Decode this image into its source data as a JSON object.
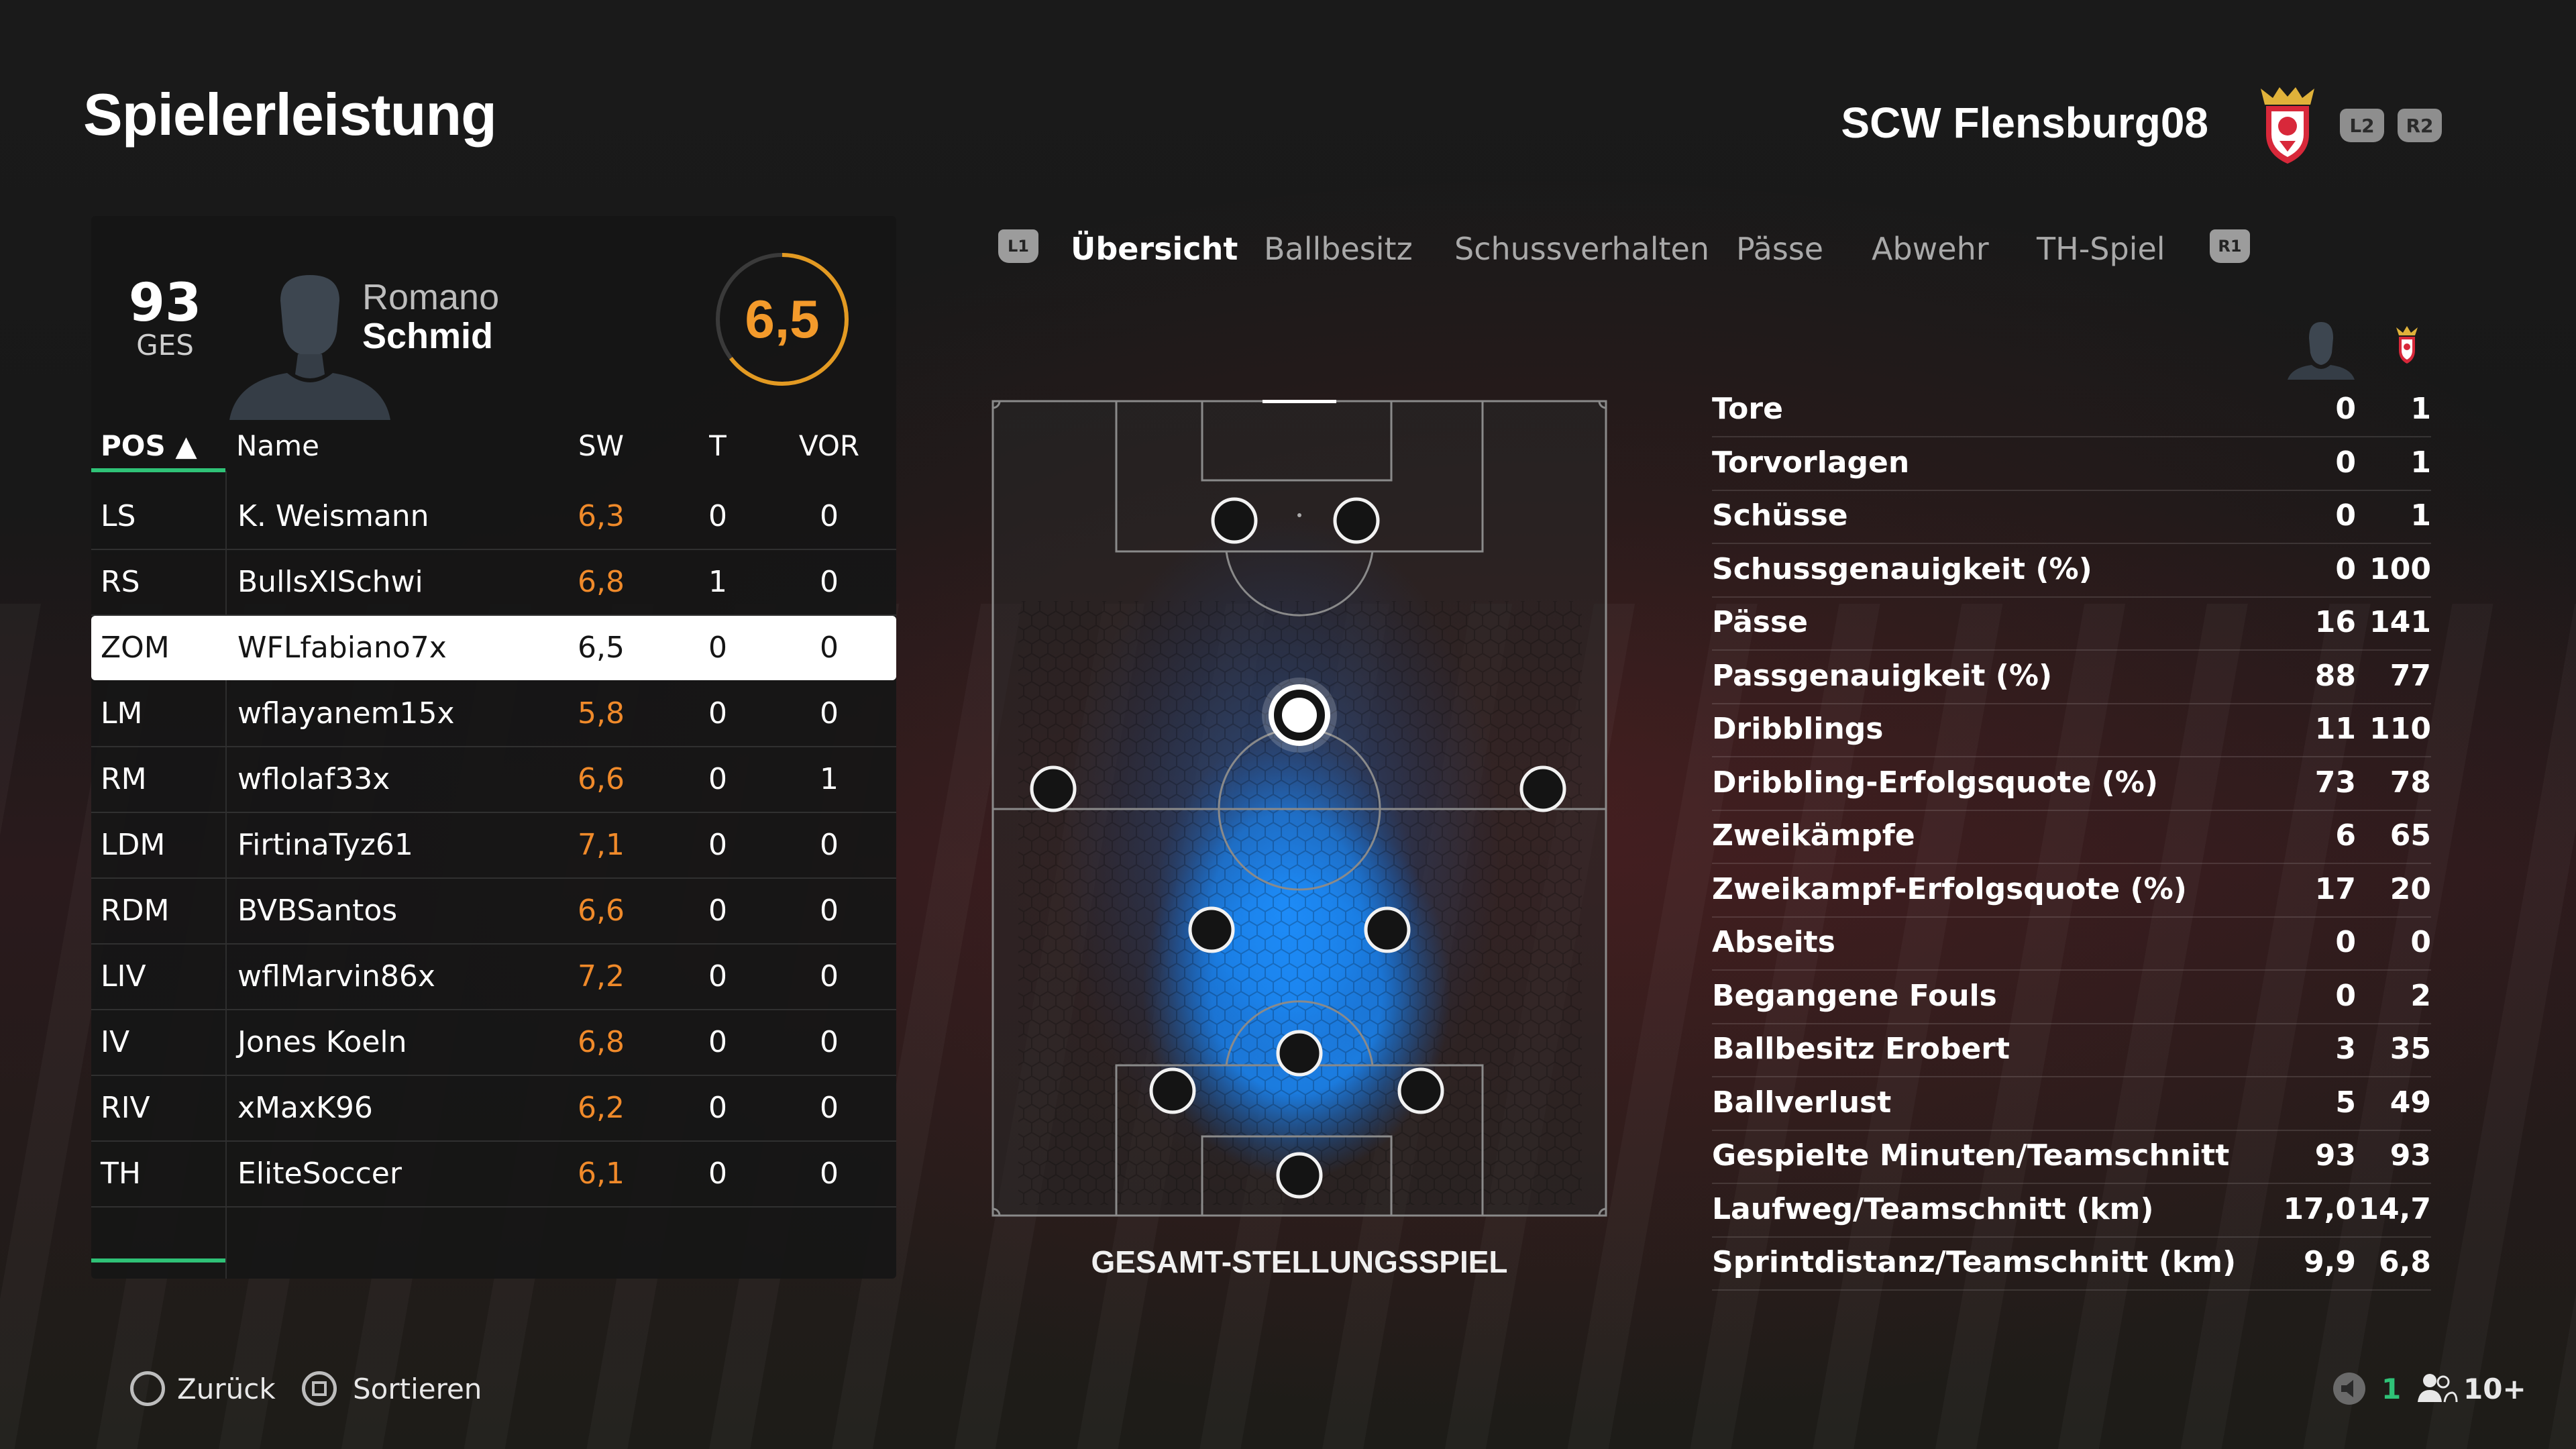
{
  "header": {
    "title": "Spielerleistung",
    "club_name": "SCW Flensburg08",
    "shoulder_left": "L2",
    "shoulder_right": "R2"
  },
  "player_card": {
    "overall": "93",
    "overall_label": "GES",
    "first_name": "Romano",
    "last_name": "Schmid",
    "rating": "6,5",
    "rating_color": "#f39a2b"
  },
  "table": {
    "headers": {
      "pos": "POS ▲",
      "name": "Name",
      "sw": "SW",
      "t": "T",
      "vor": "VOR"
    },
    "rows": [
      {
        "pos": "LS",
        "name": "K. Weismann",
        "sw": "6,3",
        "t": "0",
        "vor": "0",
        "selected": false
      },
      {
        "pos": "RS",
        "name": "BullsXISchwi",
        "sw": "6,8",
        "t": "1",
        "vor": "0",
        "selected": false
      },
      {
        "pos": "ZOM",
        "name": "WFLfabiano7x",
        "sw": "6,5",
        "t": "0",
        "vor": "0",
        "selected": true
      },
      {
        "pos": "LM",
        "name": "wflayanem15x",
        "sw": "5,8",
        "t": "0",
        "vor": "0",
        "selected": false
      },
      {
        "pos": "RM",
        "name": "wflolaf33x",
        "sw": "6,6",
        "t": "0",
        "vor": "1",
        "selected": false
      },
      {
        "pos": "LDM",
        "name": "FirtinaTyz61",
        "sw": "7,1",
        "t": "0",
        "vor": "0",
        "selected": false
      },
      {
        "pos": "RDM",
        "name": "BVBSantos",
        "sw": "6,6",
        "t": "0",
        "vor": "0",
        "selected": false
      },
      {
        "pos": "LIV",
        "name": "wflMarvin86x",
        "sw": "7,2",
        "t": "0",
        "vor": "0",
        "selected": false
      },
      {
        "pos": "IV",
        "name": "Jones Koeln",
        "sw": "6,8",
        "t": "0",
        "vor": "0",
        "selected": false
      },
      {
        "pos": "RIV",
        "name": "xMaxK96",
        "sw": "6,2",
        "t": "0",
        "vor": "0",
        "selected": false
      },
      {
        "pos": "TH",
        "name": "EliteSoccer",
        "sw": "6,1",
        "t": "0",
        "vor": "0",
        "selected": false
      }
    ]
  },
  "tabs": {
    "left_bumper": "L1",
    "right_bumper": "R1",
    "items": [
      "Übersicht",
      "Ballbesitz",
      "Schussverhalten",
      "Pässe",
      "Abwehr",
      "TH-Spiel"
    ],
    "active": "Übersicht"
  },
  "pitch": {
    "caption": "GESAMT-STELLUNGSSPIEL",
    "heatmap_color": "#1e8fff"
  },
  "stats": {
    "rows": [
      {
        "label": "Tore",
        "player": "0",
        "team": "1"
      },
      {
        "label": "Torvorlagen",
        "player": "0",
        "team": "1"
      },
      {
        "label": "Schüsse",
        "player": "0",
        "team": "1"
      },
      {
        "label": "Schussgenauigkeit (%)",
        "player": "0",
        "team": "100"
      },
      {
        "label": "Pässe",
        "player": "16",
        "team": "141"
      },
      {
        "label": "Passgenauigkeit (%)",
        "player": "88",
        "team": "77"
      },
      {
        "label": "Dribblings",
        "player": "11",
        "team": "110"
      },
      {
        "label": "Dribbling-Erfolgsquote (%)",
        "player": "73",
        "team": "78"
      },
      {
        "label": "Zweikämpfe",
        "player": "6",
        "team": "65"
      },
      {
        "label": "Zweikampf-Erfolgsquote (%)",
        "player": "17",
        "team": "20"
      },
      {
        "label": "Abseits",
        "player": "0",
        "team": "0"
      },
      {
        "label": "Begangene Fouls",
        "player": "0",
        "team": "2"
      },
      {
        "label": "Ballbesitz Erobert",
        "player": "3",
        "team": "35"
      },
      {
        "label": "Ballverlust",
        "player": "5",
        "team": "49"
      },
      {
        "label": "Gespielte Minuten/Teamschnitt",
        "player": "93",
        "team": "93"
      },
      {
        "label": "Laufweg/Teamschnitt (km)",
        "player": "17,0",
        "team": "14,7"
      },
      {
        "label": "Sprintdistanz/Teamschnitt (km)",
        "player": "9,9",
        "team": "6,8"
      }
    ]
  },
  "footer": {
    "back": "Zurück",
    "sort": "Sortieren",
    "online_count": "1",
    "players": "10+"
  },
  "colors": {
    "accent_green": "#2fc277",
    "rating_orange": "#f08a2a"
  }
}
